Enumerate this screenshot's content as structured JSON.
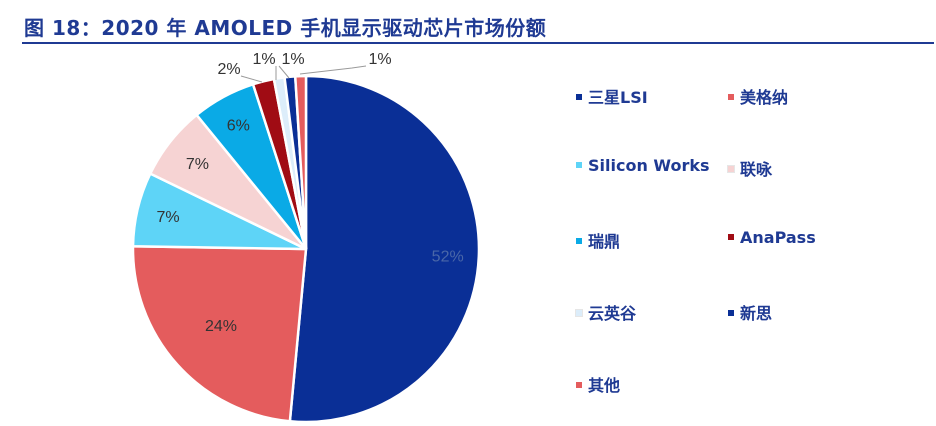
{
  "header": {
    "title": "图 18：2020 年 AMOLED 手机显示驱动芯片市场份额"
  },
  "chart_data": {
    "type": "pie",
    "title": "",
    "unit": "%",
    "slices": [
      {
        "name": "三星LSI",
        "value": 52,
        "label": "52%",
        "color": "#0a2f96"
      },
      {
        "name": "美格纳",
        "value": 24,
        "label": "24%",
        "color": "#e45c5d"
      },
      {
        "name": "Silicon Works",
        "value": 7,
        "label": "7%",
        "color": "#5ed4f7"
      },
      {
        "name": "联咏",
        "value": 7,
        "label": "7%",
        "color": "#f6d3d3"
      },
      {
        "name": "瑞鼎",
        "value": 6,
        "label": "6%",
        "color": "#0aaae6"
      },
      {
        "name": "AnaPass",
        "value": 2,
        "label": "2%",
        "color": "#a00c14"
      },
      {
        "name": "云英谷",
        "value": 1,
        "label": "1%",
        "color": "#dcedfa"
      },
      {
        "name": "新思",
        "value": 1,
        "label": "1%",
        "color": "#0a2f96"
      },
      {
        "name": "其他",
        "value": 1,
        "label": "1%",
        "color": "#e45c5d"
      }
    ],
    "legend": {
      "placement": "right",
      "columns": 2
    }
  }
}
